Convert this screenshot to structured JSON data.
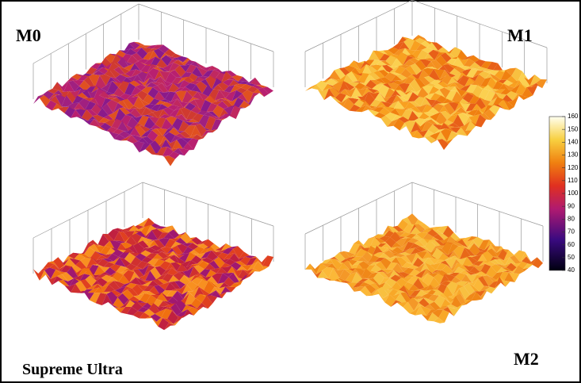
{
  "panels": [
    {
      "label": "M0"
    },
    {
      "label": "M1"
    },
    {
      "label": "Supreme Ultra"
    },
    {
      "label": "M2"
    }
  ],
  "colorbar": {
    "lim": [
      40,
      160
    ],
    "ticks": [
      40,
      50,
      60,
      70,
      80,
      90,
      100,
      110,
      120,
      130,
      140,
      150,
      160
    ]
  }
}
